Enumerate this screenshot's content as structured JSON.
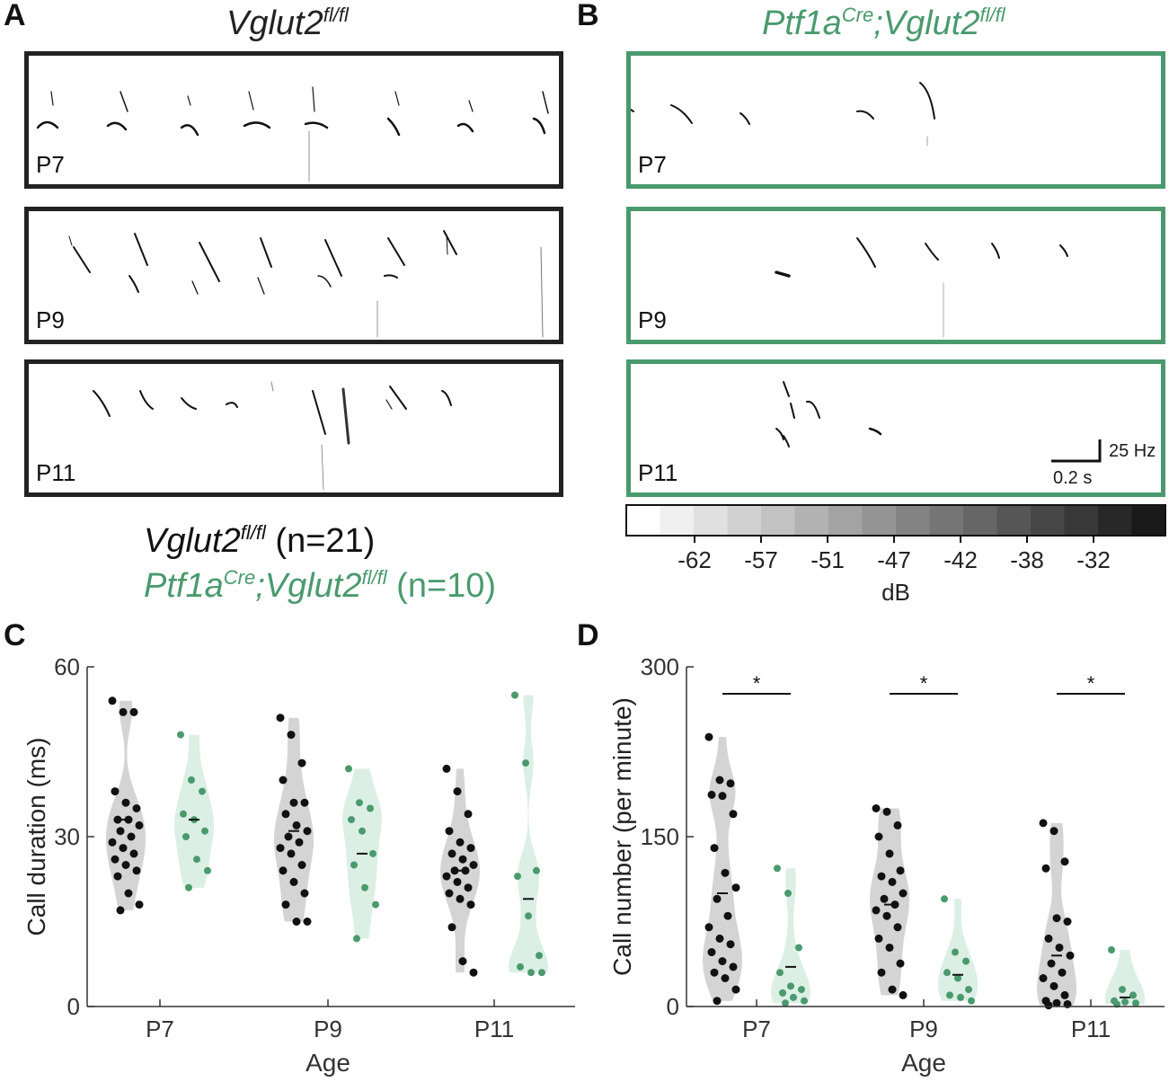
{
  "colors": {
    "wt": "#111111",
    "ko": "#4a9a6e",
    "wt_violin": "#d4d4d4",
    "ko_violin": "#dcefe5"
  },
  "panels": {
    "A": {
      "letter": "A",
      "title_main": "Vglut2",
      "title_sup": "fl/fl",
      "ages": [
        "P7",
        "P9",
        "P11"
      ]
    },
    "B": {
      "letter": "B",
      "title_pre": "Ptf1a",
      "title_pre_sup": "Cre",
      "title_mid": ";Vglut2",
      "title_sup": "fl/fl",
      "ages": [
        "P7",
        "P9",
        "P11"
      ]
    }
  },
  "scalebar": {
    "freq": "25 Hz",
    "time": "0.2 s"
  },
  "colorbar": {
    "ticks": [
      "-62",
      "-57",
      "-51",
      "-47",
      "-42",
      "-38",
      "-32"
    ],
    "label": "dB"
  },
  "legend": {
    "wt_name": "Vglut2",
    "wt_sup": "fl/fl",
    "wt_n": " (n=21)",
    "ko_pre": "Ptf1a",
    "ko_pre_sup": "Cre",
    "ko_mid": ";Vglut2",
    "ko_sup": "fl/fl",
    "ko_n": " (n=10)"
  },
  "chart_data": [
    {
      "panel": "C",
      "type": "scatter",
      "title": "",
      "xlabel": "Age",
      "ylabel": "Call duration (ms)",
      "categories": [
        "P7",
        "P9",
        "P11"
      ],
      "ylim": [
        0,
        60
      ],
      "yticks": [
        "0",
        "30",
        "60"
      ],
      "series": [
        {
          "name": "Vglut2 fl/fl",
          "medians": [
            33,
            31,
            24
          ],
          "points": [
            [
              54,
              52,
              52,
              38,
              36,
              35,
              33,
              33,
              32,
              31,
              30,
              29,
              28,
              27,
              26,
              25,
              24,
              23,
              20,
              18,
              17
            ],
            [
              51,
              48,
              43,
              40,
              36,
              36,
              34,
              32,
              31,
              30,
              29,
              28,
              27,
              25,
              24,
              22,
              20,
              18,
              15,
              15
            ],
            [
              42,
              38,
              34,
              31,
              29,
              28,
              27,
              26,
              25,
              24,
              24,
              23,
              22,
              21,
              20,
              19,
              18,
              14,
              8,
              6
            ]
          ]
        },
        {
          "name": "Ptf1a Cre;Vglut2 fl/fl",
          "medians": [
            33,
            27,
            19
          ],
          "points": [
            [
              48,
              40,
              38,
              34,
              33,
              31,
              30,
              26,
              24,
              21
            ],
            [
              42,
              36,
              35,
              33,
              31,
              27,
              25,
              21,
              18,
              12
            ],
            [
              55,
              43,
              24,
              23,
              16,
              9,
              7,
              6,
              6
            ]
          ]
        }
      ]
    },
    {
      "panel": "D",
      "type": "scatter",
      "title": "",
      "xlabel": "Age",
      "ylabel": "Call number (per minute)",
      "categories": [
        "P7",
        "P9",
        "P11"
      ],
      "ylim": [
        0,
        300
      ],
      "yticks": [
        "0",
        "150",
        "300"
      ],
      "significance": [
        "*",
        "*",
        "*"
      ],
      "series": [
        {
          "name": "Vglut2 fl/fl",
          "medians": [
            100,
            90,
            45
          ],
          "points": [
            [
              238,
              200,
              197,
              187,
              186,
              170,
              140,
              118,
              105,
              95,
              80,
              70,
              60,
              55,
              48,
              40,
              35,
              30,
              25,
              15,
              5
            ],
            [
              175,
              172,
              160,
              150,
              135,
              120,
              115,
              110,
              100,
              95,
              90,
              85,
              80,
              70,
              60,
              52,
              38,
              30,
              15,
              10
            ],
            [
              162,
              155,
              128,
              122,
              78,
              75,
              60,
              52,
              45,
              38,
              30,
              25,
              18,
              10,
              5,
              3,
              2,
              1
            ]
          ]
        },
        {
          "name": "Ptf1a Cre;Vglut2 fl/fl",
          "medians": [
            35,
            28,
            8
          ],
          "points": [
            [
              122,
              100,
              52,
              30,
              18,
              15,
              12,
              8,
              5,
              3
            ],
            [
              95,
              48,
              40,
              30,
              25,
              15,
              10,
              8,
              5
            ],
            [
              50,
              15,
              10,
              5,
              4,
              3,
              2
            ]
          ]
        }
      ]
    }
  ]
}
